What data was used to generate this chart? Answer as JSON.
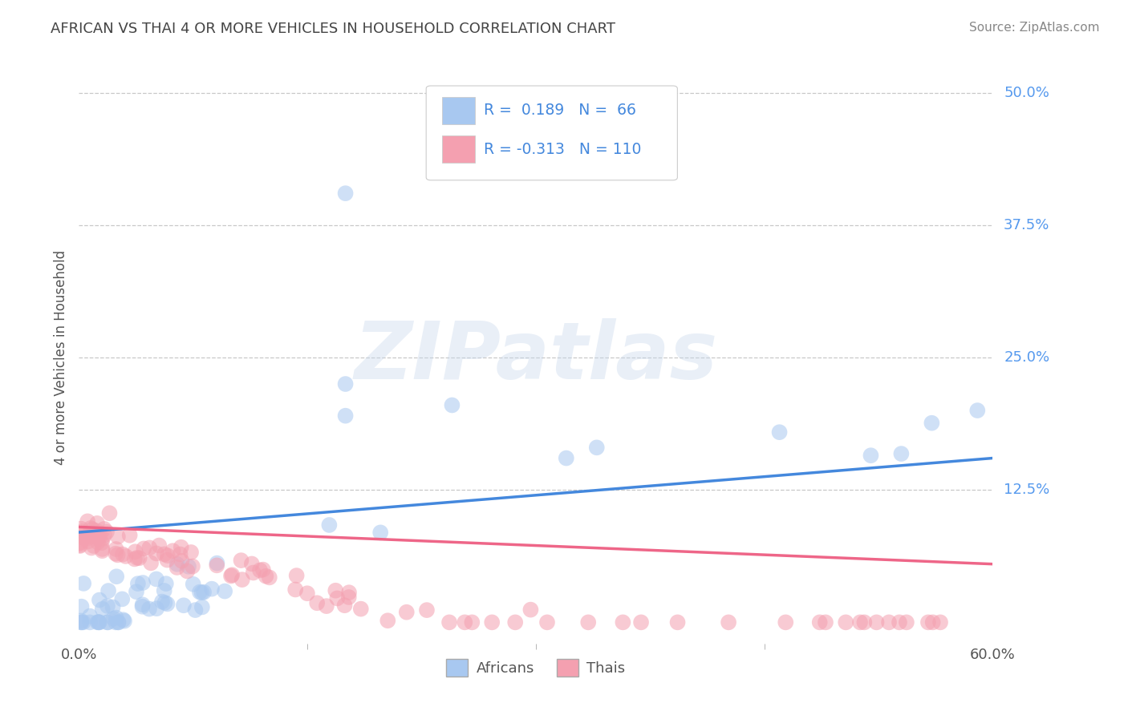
{
  "title": "AFRICAN VS THAI 4 OR MORE VEHICLES IN HOUSEHOLD CORRELATION CHART",
  "source": "Source: ZipAtlas.com",
  "ylabel": "4 or more Vehicles in Household",
  "legend_africans": "Africans",
  "legend_thais": "Thais",
  "r_african": 0.189,
  "n_african": 66,
  "r_thai": -0.313,
  "n_thai": 110,
  "xlim": [
    0.0,
    0.6
  ],
  "ylim": [
    -0.02,
    0.52
  ],
  "xtick_positions": [
    0.0,
    0.6
  ],
  "xtick_labels": [
    "0.0%",
    "60.0%"
  ],
  "ytick_labels": [
    "12.5%",
    "25.0%",
    "37.5%",
    "50.0%"
  ],
  "ytick_positions": [
    0.125,
    0.25,
    0.375,
    0.5
  ],
  "color_african": "#a8c8f0",
  "color_thai": "#f4a0b0",
  "line_color_african": "#4488dd",
  "line_color_thai": "#ee6688",
  "background_color": "#ffffff",
  "grid_color": "#bbbbbb",
  "title_color": "#444444",
  "source_color": "#888888",
  "right_label_color": "#5599ee",
  "watermark": "ZIPatlas",
  "line_y0_af": 0.085,
  "line_y1_af": 0.155,
  "line_y0_th": 0.09,
  "line_y1_th": 0.055
}
